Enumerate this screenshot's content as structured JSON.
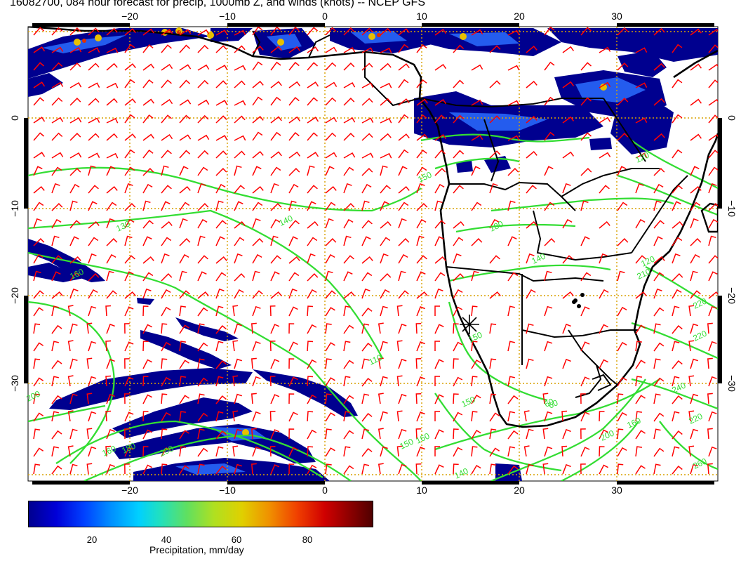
{
  "title": "16082700, 084 hour forecast for precip, 1000mb Z, and winds (knots) -- NCEP GFS",
  "map": {
    "lon_ticks": [
      "−20",
      "−10",
      "0",
      "10",
      "20",
      "30"
    ],
    "lat_ticks": [
      "0",
      "−10",
      "−20",
      "−30"
    ],
    "contour_labels": [
      "130",
      "140",
      "150",
      "160",
      "120",
      "110",
      "160",
      "150",
      "140",
      "200",
      "210",
      "220",
      "220",
      "240",
      "220",
      "260",
      "60",
      "150",
      "140",
      "160",
      "180",
      "200",
      "120",
      "180",
      "150",
      "60",
      "160",
      "200"
    ],
    "colors": {
      "coast": "#000000",
      "contour": "#33dd33",
      "wind_barb": "#ff0000",
      "grid": "#d8a000",
      "precip_low": "#00008f",
      "precip_mid": "#2a6cff"
    }
  },
  "colorbar": {
    "ticks": [
      "20",
      "40",
      "60",
      "80"
    ],
    "label": "Precipitation, mm/day"
  }
}
